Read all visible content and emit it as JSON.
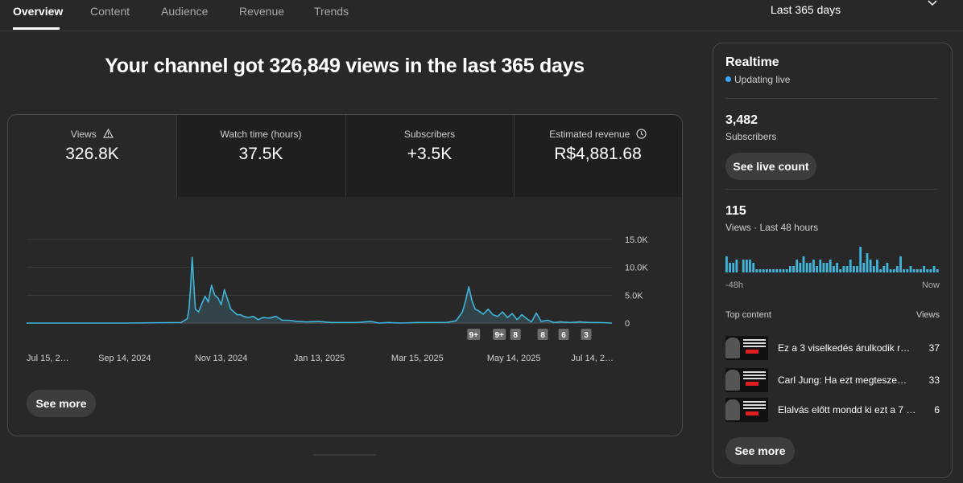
{
  "tabs": [
    {
      "label": "Overview"
    },
    {
      "label": "Content"
    },
    {
      "label": "Audience"
    },
    {
      "label": "Revenue"
    },
    {
      "label": "Trends"
    }
  ],
  "period": {
    "label": "Last 365 days"
  },
  "headline": "Your channel got 326,849 views in the last 365 days",
  "metrics": [
    {
      "label": "Views",
      "value": "326.8K",
      "icon": "warning-icon"
    },
    {
      "label": "Watch time (hours)",
      "value": "37.5K"
    },
    {
      "label": "Subscribers",
      "value": "+3.5K"
    },
    {
      "label": "Estimated revenue",
      "value": "R$4,881.68",
      "icon": "clock-icon"
    }
  ],
  "chart_data": {
    "type": "area",
    "title": "",
    "xlabel": "",
    "ylabel": "",
    "y_ticks": [
      "15.0K",
      "10.0K",
      "5.0K",
      "0"
    ],
    "ylim": [
      0,
      15000
    ],
    "x_ticks": [
      "Jul 15, 2…",
      "Sep 14, 2024",
      "Nov 13, 2024",
      "Jan 13, 2025",
      "Mar 15, 2025",
      "May 14, 2025",
      "Jul 14, 2…"
    ],
    "x": [
      "2024-07-15",
      "2024-09-14",
      "2024-10-19",
      "2024-10-23",
      "2024-10-24",
      "2024-10-25",
      "2024-10-26",
      "2024-10-27",
      "2024-10-28",
      "2024-10-30",
      "2024-11-01",
      "2024-11-03",
      "2024-11-05",
      "2024-11-07",
      "2024-11-09",
      "2024-11-11",
      "2024-11-13",
      "2024-11-15",
      "2024-11-17",
      "2024-11-19",
      "2024-11-21",
      "2024-11-23",
      "2024-11-25",
      "2024-11-27",
      "2024-11-30",
      "2024-12-03",
      "2024-12-06",
      "2024-12-09",
      "2024-12-13",
      "2024-12-17",
      "2024-12-21",
      "2024-12-25",
      "2024-12-30",
      "2025-01-05",
      "2025-01-13",
      "2025-01-20",
      "2025-01-28",
      "2025-02-05",
      "2025-02-14",
      "2025-02-19",
      "2025-02-25",
      "2025-03-05",
      "2025-03-15",
      "2025-03-25",
      "2025-04-02",
      "2025-04-08",
      "2025-04-12",
      "2025-04-14",
      "2025-04-16",
      "2025-04-18",
      "2025-04-20",
      "2025-04-22",
      "2025-04-25",
      "2025-04-28",
      "2025-05-01",
      "2025-05-04",
      "2025-05-07",
      "2025-05-10",
      "2025-05-13",
      "2025-05-16",
      "2025-05-19",
      "2025-05-22",
      "2025-05-25",
      "2025-05-28",
      "2025-05-31",
      "2025-06-04",
      "2025-06-08",
      "2025-06-12",
      "2025-06-18",
      "2025-06-24",
      "2025-06-30",
      "2025-07-06",
      "2025-07-14"
    ],
    "series": [
      {
        "values": [
          0,
          0,
          100,
          800,
          2500,
          6500,
          11800,
          7000,
          2500,
          2000,
          3500,
          4800,
          3800,
          6800,
          5000,
          4500,
          3300,
          6000,
          4200,
          2500,
          2000,
          1500,
          1500,
          1200,
          1000,
          1200,
          600,
          1000,
          900,
          1200,
          500,
          500,
          300,
          200,
          300,
          100,
          100,
          100,
          300,
          0,
          100,
          0,
          100,
          100,
          100,
          400,
          2000,
          4000,
          6500,
          4000,
          2500,
          2200,
          1600,
          2500,
          1500,
          1200,
          2000,
          1000,
          1700,
          600,
          1500,
          800,
          200,
          1800,
          300,
          500,
          100,
          200,
          100,
          200,
          100,
          100,
          0
        ]
      }
    ],
    "annotations": [
      "9+",
      "9+",
      "8",
      "8",
      "6",
      "3"
    ],
    "grid": true
  },
  "see_more_label": "See more",
  "realtime": {
    "title": "Realtime",
    "status": "Updating live",
    "subscribers_count": "3,482",
    "subscribers_label": "Subscribers",
    "live_count_button": "See live count",
    "views_count": "115",
    "views_label": "Views · Last 48 hours",
    "bars": [
      5,
      3,
      3,
      4,
      0,
      4,
      4,
      4,
      3,
      1,
      1,
      1,
      1,
      1,
      1,
      1,
      1,
      1,
      1,
      2,
      2,
      4,
      3,
      5,
      3,
      3,
      4,
      2,
      4,
      3,
      3,
      4,
      2,
      3,
      1,
      2,
      2,
      4,
      2,
      2,
      8,
      3,
      6,
      4,
      2,
      4,
      1,
      2,
      3,
      1,
      1,
      2,
      5,
      1,
      1,
      2,
      1,
      1,
      1,
      2,
      1,
      1,
      2,
      1
    ],
    "axis_start": "-48h",
    "axis_end": "Now",
    "top_content_label": "Top content",
    "views_header": "Views",
    "items": [
      {
        "title": "Ez a 3 viselkedés árulkodik r…",
        "views": "37"
      },
      {
        "title": "Carl Jung: Ha ezt megtesze…",
        "views": "33"
      },
      {
        "title": "Elalvás előtt mondd ki ezt a 7 …",
        "views": "6"
      }
    ],
    "see_more_label": "See more"
  },
  "colors": {
    "accent": "#3ea6ff",
    "chart_line": "#41b4d9"
  }
}
